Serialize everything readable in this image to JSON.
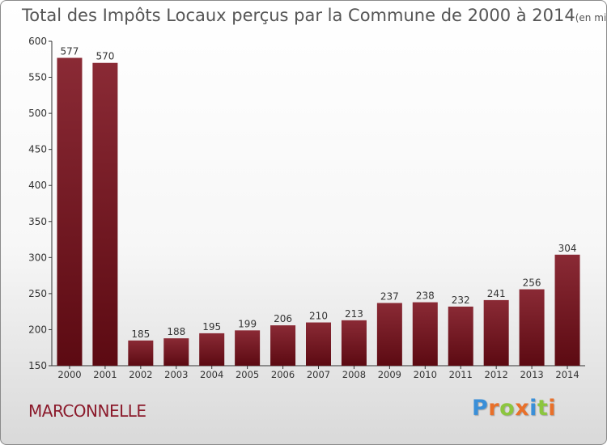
{
  "title": "Total des Impôts Locaux perçus par la Commune de 2000 à 2014",
  "unit_note": "(en milliers d'€)",
  "commune": "MARCONNELLE",
  "logo": {
    "letters": [
      {
        "ch": "P",
        "color": "#3a8fd8"
      },
      {
        "ch": "r",
        "color": "#e8702a"
      },
      {
        "ch": "o",
        "color": "#8cc63f"
      },
      {
        "ch": "x",
        "color": "#e8702a"
      },
      {
        "ch": "i",
        "color": "#3a8fd8"
      },
      {
        "ch": "t",
        "color": "#8cc63f"
      },
      {
        "ch": "i",
        "color": "#e8702a"
      }
    ]
  },
  "chart_data": {
    "type": "bar",
    "title": "Total des Impôts Locaux perçus par la Commune de 2000 à 2014",
    "categories": [
      "2000",
      "2001",
      "2002",
      "2003",
      "2004",
      "2005",
      "2006",
      "2007",
      "2008",
      "2009",
      "2010",
      "2011",
      "2012",
      "2013",
      "2014"
    ],
    "values": [
      577,
      570,
      185,
      188,
      195,
      199,
      206,
      210,
      213,
      237,
      238,
      232,
      241,
      256,
      304
    ],
    "ylim": [
      150,
      600
    ],
    "yticks": [
      150,
      200,
      250,
      300,
      350,
      400,
      450,
      500,
      550,
      600
    ],
    "grid": false,
    "bar_color": "#7a1422"
  }
}
